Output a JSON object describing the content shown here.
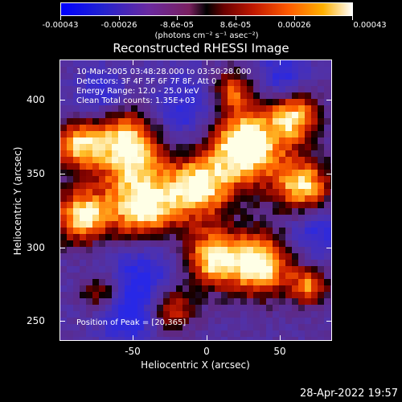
{
  "colorbar": {
    "labels": [
      "-0.00043",
      "-0.00026",
      "-8.6e-05",
      "8.6e-05",
      "0.00026",
      "0.00043"
    ],
    "units": "(photons cm⁻² s⁻¹ asec⁻²)"
  },
  "title": "Reconstructed RHESSI Image",
  "info": {
    "line1": "10-Mar-2005 03:48:28.000 to 03:50:28.000",
    "line2": "Detectors: 3F 4F 5F 6F 7F 8F, Att 0",
    "line3": "Energy Range: 12.0 - 25.0 keV",
    "line4": "Clean     Total counts: 1.35E+03",
    "peak": "Position of Peak = [20,365]"
  },
  "axes": {
    "x_title": "Heliocentric X (arcsec)",
    "y_title": "Heliocentric Y (arcsec)",
    "x_ticks": [
      "-50",
      "0",
      "50"
    ],
    "y_ticks": [
      "400",
      "350",
      "300",
      "250"
    ]
  },
  "timestamp": "28-Apr-2022 19:57"
}
